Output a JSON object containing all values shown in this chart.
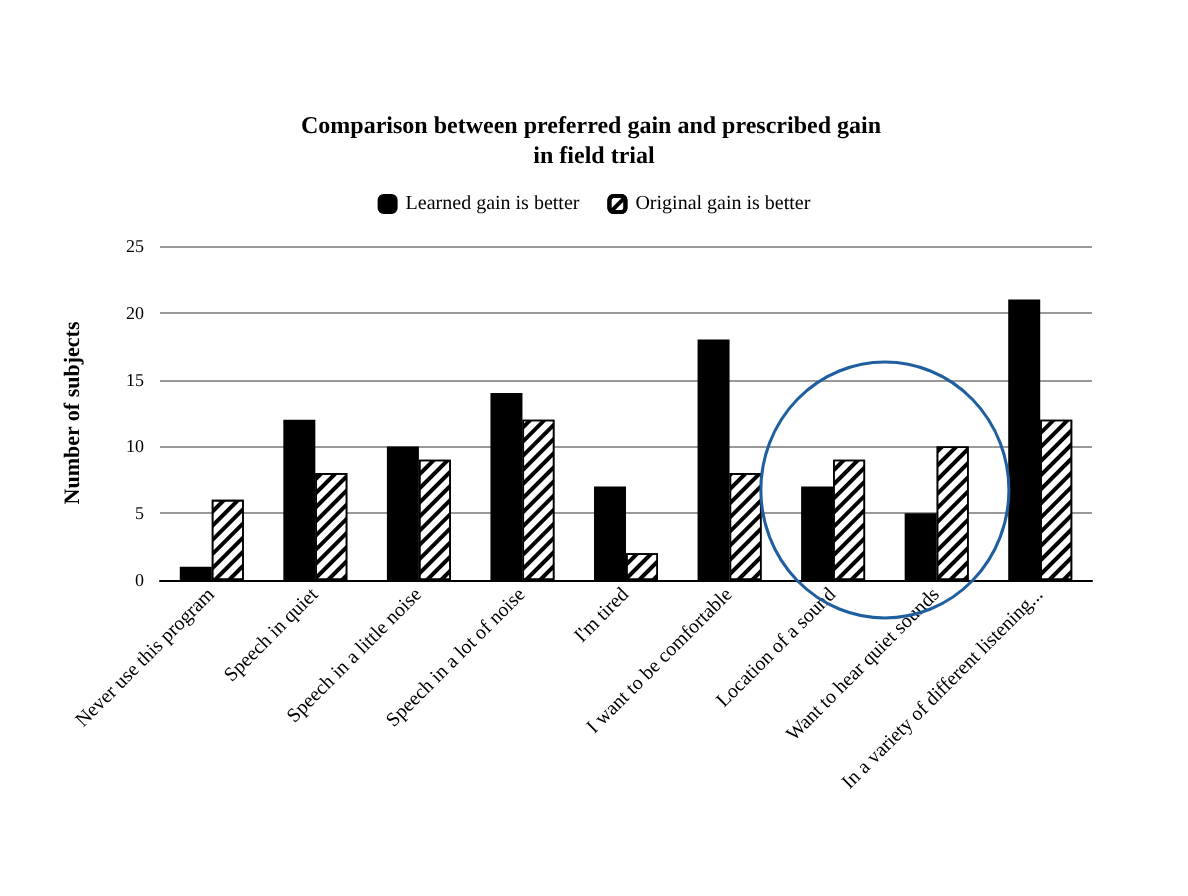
{
  "chart_data": {
    "type": "bar",
    "title": "Comparison between preferred gain and prescribed gain in field trial",
    "ylabel": "Number of subjects",
    "categories": [
      "Never use this program",
      "Speech in quiet",
      "Speech in a little noise",
      "Speech in a lot of noise",
      "I'm tired",
      "I want to be comfortable",
      "Location of a sound",
      "Want to hear quiet sounds",
      "In a variety of different listening..."
    ],
    "series": [
      {
        "name": "Learned gain is better",
        "color": "#000000",
        "values": [
          1,
          12,
          10,
          14,
          7,
          18,
          7,
          5,
          21
        ]
      },
      {
        "name": "Original gain is better",
        "color": "#ffffff",
        "values": [
          6,
          8,
          9,
          12,
          2,
          8,
          9,
          10,
          12
        ]
      }
    ],
    "ylim": [
      0,
      25
    ],
    "yticks": [
      0,
      5,
      10,
      15,
      20,
      25
    ],
    "grid": "y",
    "legend": "top"
  }
}
